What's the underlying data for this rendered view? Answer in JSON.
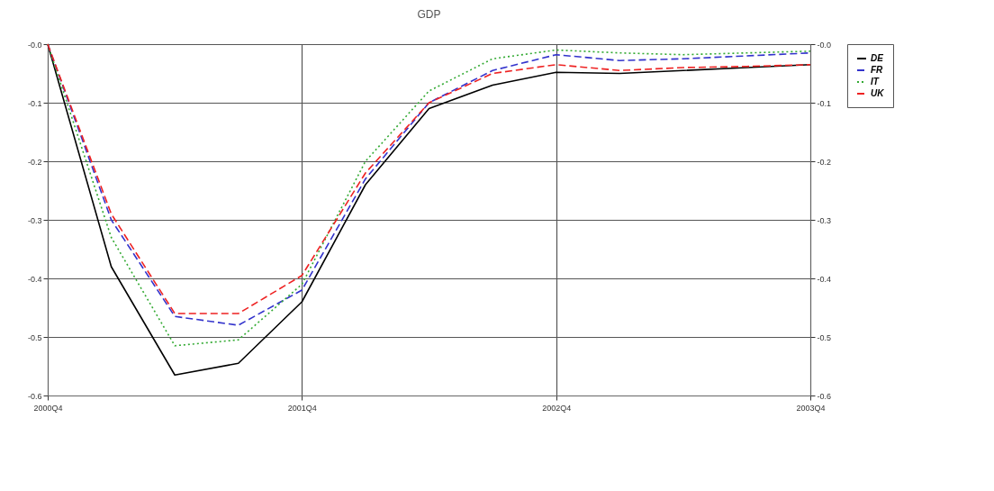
{
  "chart_data": {
    "type": "line",
    "title": "GDP",
    "categories": [
      "2000Q4",
      null,
      null,
      null,
      "2001Q4",
      null,
      null,
      null,
      "2002Q4",
      null,
      null,
      null,
      "2003Q4"
    ],
    "series": [
      {
        "name": "DE",
        "color": "#000000",
        "line_style": "solid",
        "values": [
          0,
          -0.38,
          -0.565,
          -0.545,
          -0.44,
          -0.24,
          -0.11,
          -0.07,
          -0.048,
          -0.05,
          -0.045,
          -0.04,
          -0.035
        ]
      },
      {
        "name": "FR",
        "color": "#3333cc",
        "line_style": "dashed",
        "values": [
          0,
          -0.3,
          -0.465,
          -0.48,
          -0.42,
          -0.23,
          -0.1,
          -0.045,
          -0.018,
          -0.028,
          -0.025,
          -0.02,
          -0.015
        ]
      },
      {
        "name": "IT",
        "color": "#33aa33",
        "line_style": "dotted",
        "values": [
          0,
          -0.33,
          -0.515,
          -0.505,
          -0.41,
          -0.2,
          -0.08,
          -0.025,
          -0.01,
          -0.015,
          -0.018,
          -0.015,
          -0.012
        ]
      },
      {
        "name": "UK",
        "color": "#ee2222",
        "line_style": "dashed",
        "values": [
          0,
          -0.29,
          -0.46,
          -0.46,
          -0.395,
          -0.22,
          -0.1,
          -0.05,
          -0.035,
          -0.045,
          -0.04,
          -0.038,
          -0.035
        ]
      }
    ],
    "ylim": [
      -0.6,
      0
    ],
    "yticks": [
      -0.6,
      -0.5,
      -0.4,
      -0.3,
      -0.2,
      -0.1,
      {
        "value": 0,
        "label": "-0.0"
      }
    ],
    "y2lim": [
      -0.6,
      0
    ],
    "y2ticks": [
      -0.6,
      -0.5,
      -0.4,
      -0.3,
      -0.2,
      -0.1,
      {
        "value": 0,
        "label": "-0.0"
      }
    ],
    "grid": true,
    "legend": "right",
    "marker": "none"
  }
}
